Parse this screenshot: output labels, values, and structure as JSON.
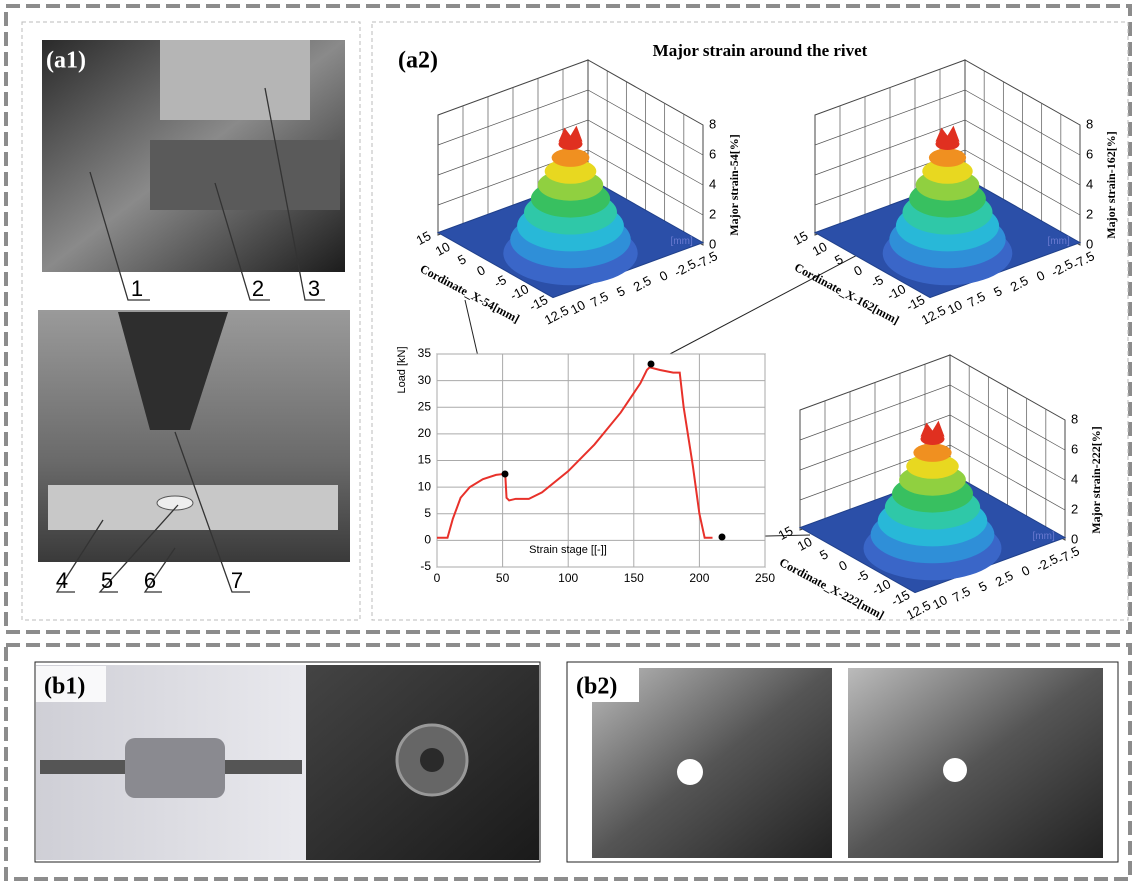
{
  "panels": {
    "a1": "(a1)",
    "a2": "(a2)",
    "b1": "(b1)",
    "b2": "(b2)"
  },
  "callouts": [
    "1",
    "2",
    "3",
    "4",
    "5",
    "6",
    "7"
  ],
  "chart_data": {
    "type": "line",
    "title": "Major strain around the rivet",
    "x_label": "Strain stage [[-]]",
    "y_label": "Load [kN]",
    "x": [
      0,
      8,
      12,
      18,
      25,
      35,
      45,
      52,
      53,
      55,
      60,
      70,
      80,
      100,
      120,
      140,
      155,
      160,
      162,
      170,
      180,
      185,
      188,
      195,
      200,
      204,
      210
    ],
    "series": [
      {
        "color": "#e8312a",
        "values": [
          0.5,
          0.5,
          4,
          8,
          10,
          11.5,
          12.3,
          12.5,
          8,
          7.5,
          7.8,
          7.8,
          9,
          13,
          18,
          24,
          29.5,
          32,
          32.5,
          32,
          31.5,
          31.5,
          25,
          14,
          5,
          0.5,
          0.5
        ]
      }
    ],
    "xlim": [
      0,
      250
    ],
    "ylim": [
      -5,
      35
    ],
    "xticks": [
      0,
      50,
      100,
      150,
      200,
      250
    ],
    "yticks": [
      -5,
      0,
      5,
      10,
      15,
      20,
      25,
      30,
      35
    ],
    "grid": true
  },
  "surface_plots": [
    {
      "z_label": "Major strain-54[%]",
      "x_label": "Cordinate_X-54[mm]"
    },
    {
      "z_label": "Major strain-162[%]",
      "x_label": "Cordinate_X-162[mm]"
    },
    {
      "z_label": "Major strain-222[%]",
      "x_label": "Cordinate_X-222[mm]"
    }
  ],
  "surface_axes": {
    "x_ticks": [
      "15",
      "10",
      "5",
      "0",
      "-5",
      "-10",
      "-15"
    ],
    "y_ticks": [
      "12.5",
      "10",
      "7.5",
      "5",
      "2.5",
      "0",
      "-2.5",
      "-7.5"
    ],
    "z_ticks": [
      "0",
      "2",
      "4",
      "6",
      "8"
    ],
    "y_unit": "[mm]"
  }
}
